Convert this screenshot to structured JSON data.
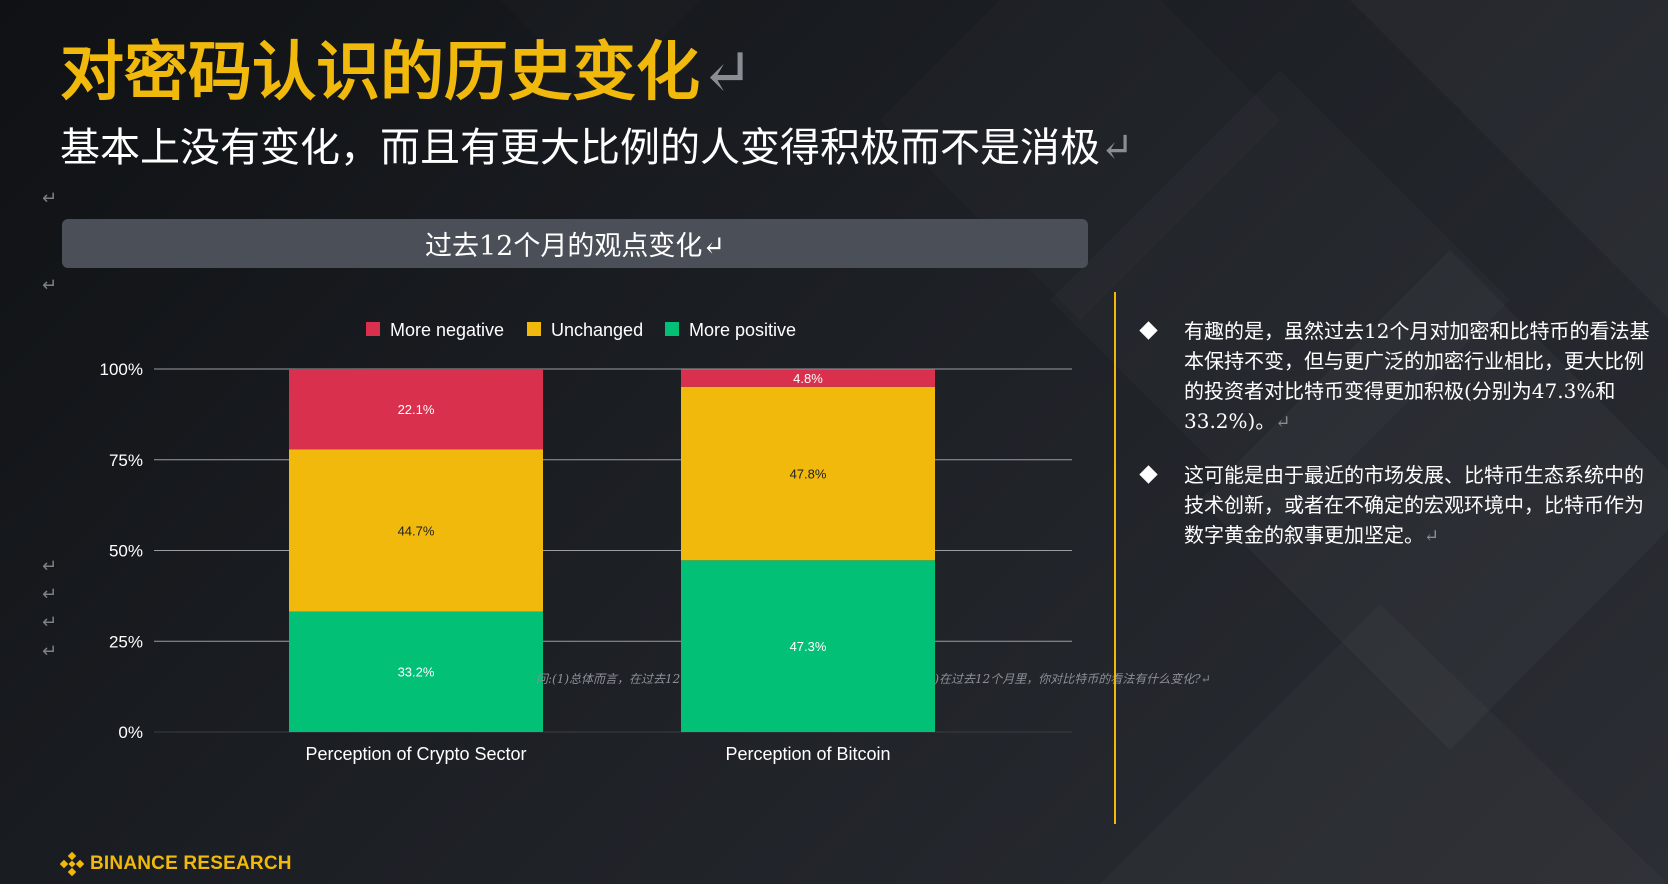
{
  "slide": {
    "title": "对密码认识的历史变化",
    "subtitle": "基本上没有变化，而且有更大比例的人变得积极而不是消极",
    "return_mark": "↵"
  },
  "chart_header": "过去12个月的观点变化",
  "chart_data": {
    "type": "bar",
    "stacked": true,
    "categories": [
      "Perception of Crypto Sector",
      "Perception of Bitcoin"
    ],
    "series": [
      {
        "name": "More positive",
        "values": [
          33.2,
          47.3
        ],
        "color": "#02C076",
        "labels": [
          "33.2%",
          "47.3%"
        ]
      },
      {
        "name": "Unchanged",
        "values": [
          44.7,
          47.8
        ],
        "color": "#F0B90B",
        "labels": [
          "44.7%",
          "47.8%"
        ]
      },
      {
        "name": "More negative",
        "values": [
          22.1,
          4.8
        ],
        "color": "#D9304E",
        "labels": [
          "22.1%",
          "4.8%"
        ]
      }
    ],
    "legend_order": [
      "More negative",
      "Unchanged",
      "More positive"
    ],
    "ylim": [
      0,
      100
    ],
    "yticks": [
      0,
      25,
      50,
      75,
      100
    ],
    "ytick_labels": [
      "0%",
      "25%",
      "50%",
      "75%",
      "100%"
    ],
    "grid": true,
    "legend_position": "top"
  },
  "source_note": {
    "left": "问:(1)总体而言，在过去12",
    "right": ")在过去12个月里，你对比特币的看法有什么变化?"
  },
  "bullets": [
    {
      "text": "有趣的是，虽然过去12个月对加密和比特币的看法基本保持不变，但与更广泛的加密行业相比，更大比例的投资者对比特币变得更加积极(分别为47.3%和33.2%)。"
    },
    {
      "text": "这可能是由于最近的市场发展、比特币生态系统中的技术创新，或者在不确定的宏观环境中，比特币作为数字黄金的叙事更加坚定。"
    }
  ],
  "logo": {
    "text": "BINANCE RESEARCH"
  },
  "colors": {
    "accent": "#F0B90B",
    "positive": "#02C076",
    "negative": "#D9304E",
    "header_bg": "#4a4f58"
  }
}
